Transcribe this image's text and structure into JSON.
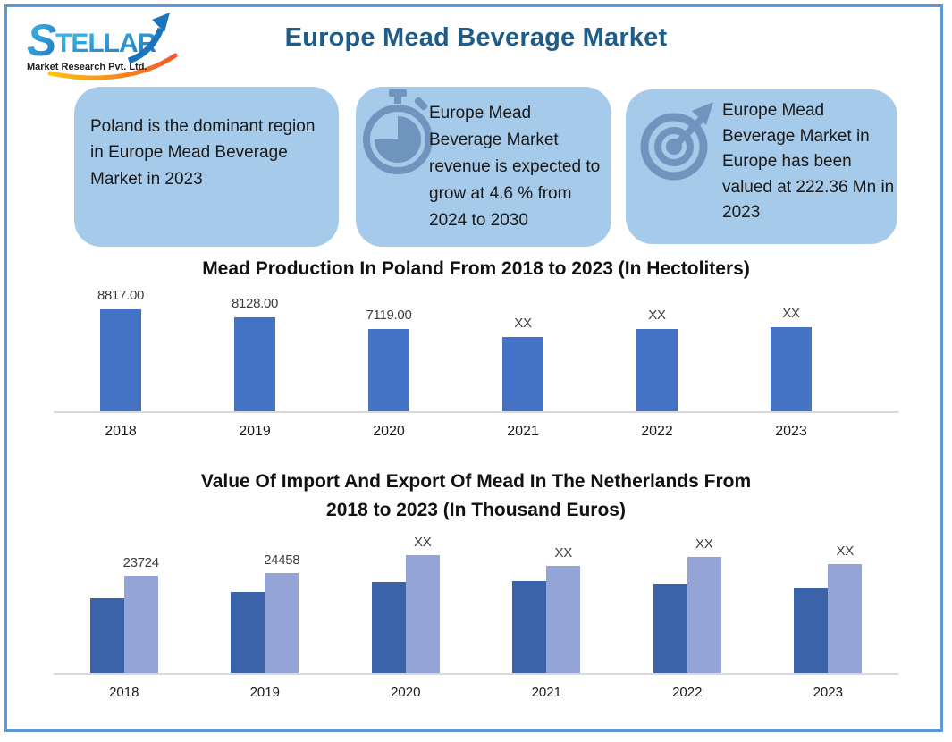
{
  "header": {
    "logo": {
      "brand": "STELLAR",
      "tagline": "Market Research Pvt. Ltd."
    },
    "title": "Europe Mead Beverage Market"
  },
  "highlight_cards": [
    {
      "icon": "none",
      "text": "Poland is the dominant region in Europe Mead Beverage Market in 2023"
    },
    {
      "icon": "stopwatch-icon",
      "text": "Europe Mead Beverage Market revenue is expected to grow at 4.6 % from 2024 to 2030"
    },
    {
      "icon": "target-arrow-icon",
      "text": "Europe Mead Beverage Market in Europe has been valued at 222.36 Mn in 2023"
    }
  ],
  "colors": {
    "frame_border": "#5B9BD5",
    "header_title": "#1F5C87",
    "card_background": "#A6CAE9",
    "card_icon": "#6F95BE",
    "chart1_bar": "#4472C4",
    "chart2_series1_bar": "#3B63A9",
    "chart2_series2_bar": "#94A4D7",
    "axis_line": "#D9D9D9"
  },
  "chart_data": [
    {
      "type": "bar",
      "title": "Mead Production In Poland From 2018 to 2023 (In Hectoliters)",
      "categories": [
        "2018",
        "2019",
        "2020",
        "2021",
        "2022",
        "2023"
      ],
      "values": [
        8817,
        8128,
        7119,
        6400,
        7150,
        7250
      ],
      "labels": [
        "8817.00",
        "8128.00",
        "7119.00",
        "XX",
        "XX",
        "XX"
      ],
      "note": "bars labeled XX carry no printed value; numbers estimated from bar heights",
      "xlabel": "",
      "ylabel": "",
      "y_axis_visible": false,
      "grid": false,
      "legend": "none"
    },
    {
      "type": "bar",
      "title": "Value Of Import And Export Of Mead In The Netherlands From 2018 to 2023 (In Thousand Euros)",
      "title_lines": [
        "Value Of Import And Export Of Mead In The Netherlands From",
        "2018 to 2023 (In Thousand Euros)"
      ],
      "categories": [
        "2018",
        "2019",
        "2020",
        "2021",
        "2022",
        "2023"
      ],
      "series": [
        {
          "name": "Import",
          "values": [
            18300,
            19800,
            22250,
            22500,
            21800,
            20700
          ],
          "labels": [
            "",
            "",
            "",
            "",
            "",
            ""
          ]
        },
        {
          "name": "Export",
          "values": [
            23724,
            24458,
            28750,
            26150,
            28400,
            26600
          ],
          "labels": [
            "23724",
            "24458",
            "XX",
            "XX",
            "XX",
            "XX"
          ]
        }
      ],
      "note": "bars labeled XX carry no printed value; numbers estimated from bar heights",
      "xlabel": "",
      "ylabel": "",
      "y_axis_visible": false,
      "grid": false,
      "legend": "none"
    }
  ]
}
